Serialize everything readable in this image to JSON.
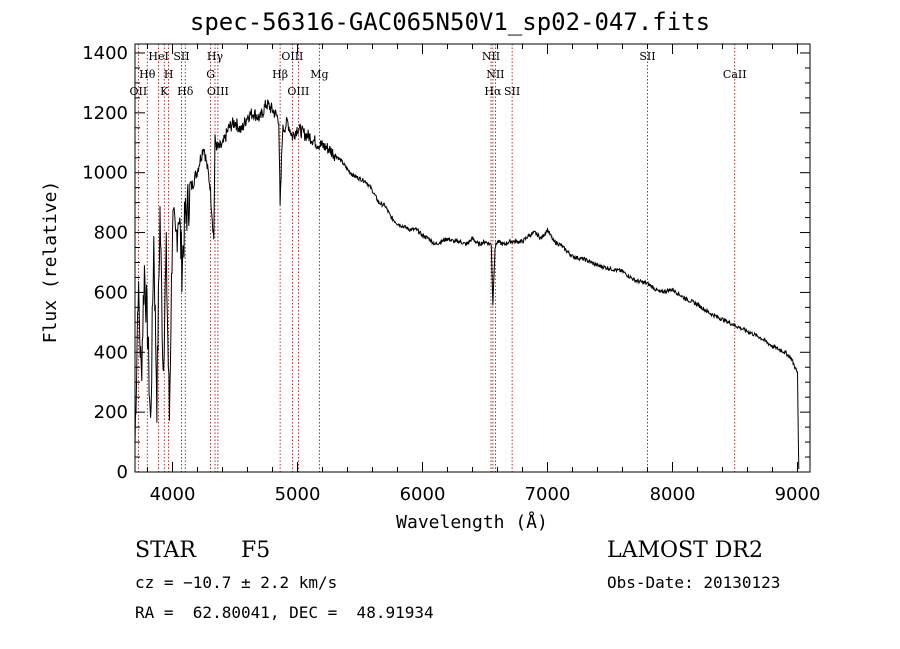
{
  "chart_data": {
    "type": "line",
    "title": "spec-56316-GAC065N50V1_sp02-047.fits",
    "xlabel": "Wavelength (Å)",
    "ylabel": "Flux (relative)",
    "xlim": [
      3700,
      9100
    ],
    "ylim": [
      0,
      1430
    ],
    "xticks": [
      4000,
      5000,
      6000,
      7000,
      8000,
      9000
    ],
    "yticks": [
      0,
      200,
      400,
      600,
      800,
      1000,
      1200,
      1400
    ],
    "grid": false,
    "legend": "none",
    "line_color": "#000000",
    "marker_color": "#8b0000",
    "series": [
      {
        "x": [
          3700,
          3725,
          3750,
          3775,
          3800,
          3825,
          3850,
          3875,
          3900,
          3925,
          3950,
          3975,
          4000,
          4025,
          4050,
          4075,
          4100,
          4150,
          4200,
          4250,
          4300,
          4330,
          4340,
          4360,
          4400,
          4450,
          4500,
          4550,
          4600,
          4650,
          4700,
          4750,
          4800,
          4850,
          4861,
          4880,
          4920,
          4960,
          5000,
          5050,
          5100,
          5150,
          5200,
          5250,
          5300,
          5350,
          5400,
          5450,
          5500,
          5550,
          5600,
          5650,
          5700,
          5750,
          5800,
          5850,
          5900,
          5950,
          6000,
          6050,
          6100,
          6150,
          6200,
          6250,
          6300,
          6350,
          6400,
          6450,
          6500,
          6550,
          6563,
          6580,
          6600,
          6650,
          6700,
          6750,
          6800,
          6850,
          6900,
          6950,
          7000,
          7050,
          7100,
          7150,
          7200,
          7300,
          7400,
          7500,
          7600,
          7700,
          7800,
          7900,
          8000,
          8100,
          8200,
          8300,
          8400,
          8500,
          8600,
          8700,
          8800,
          8900,
          8950,
          8980,
          9000,
          9010
        ],
        "y": [
          90,
          620,
          320,
          680,
          480,
          150,
          780,
          240,
          870,
          350,
          720,
          180,
          840,
          760,
          880,
          690,
          840,
          950,
          1010,
          1090,
          960,
          780,
          1110,
          1080,
          1090,
          1150,
          1170,
          1140,
          1190,
          1200,
          1180,
          1230,
          1210,
          1180,
          880,
          1140,
          1170,
          1120,
          1150,
          1130,
          1120,
          1100,
          1090,
          1080,
          1060,
          1040,
          1010,
          990,
          980,
          970,
          940,
          900,
          890,
          850,
          830,
          820,
          810,
          810,
          790,
          780,
          760,
          770,
          780,
          770,
          770,
          760,
          780,
          760,
          770,
          760,
          560,
          750,
          770,
          760,
          770,
          770,
          770,
          790,
          800,
          780,
          810,
          770,
          760,
          740,
          720,
          710,
          690,
          680,
          670,
          640,
          630,
          600,
          610,
          580,
          560,
          530,
          510,
          490,
          470,
          450,
          420,
          400,
          380,
          350,
          330,
          10
        ]
      }
    ],
    "lines": [
      {
        "name": "OII",
        "wavelength": 3727,
        "row": 3
      },
      {
        "name": "Hθ",
        "wavelength": 3798,
        "row": 2
      },
      {
        "name": "HeI",
        "wavelength": 3889,
        "row": 1
      },
      {
        "name": "K",
        "wavelength": 3934,
        "row": 3
      },
      {
        "name": "H",
        "wavelength": 3969,
        "row": 2
      },
      {
        "name": "SII",
        "wavelength": 4072,
        "row": 1
      },
      {
        "name": "Hδ",
        "wavelength": 4102,
        "row": 3
      },
      {
        "name": "Hγ",
        "wavelength": 4340,
        "row": 1
      },
      {
        "name": "G",
        "wavelength": 4305,
        "row": 2
      },
      {
        "name": "OIII",
        "wavelength": 4363,
        "row": 3
      },
      {
        "name": "Hβ",
        "wavelength": 4861,
        "row": 2
      },
      {
        "name": "OIII",
        "wavelength": 4959,
        "row": 1
      },
      {
        "name": "OIII",
        "wavelength": 5007,
        "row": 3
      },
      {
        "name": "Mg",
        "wavelength": 5175,
        "row": 2
      },
      {
        "name": "NII",
        "wavelength": 6548,
        "row": 1
      },
      {
        "name": "NII",
        "wavelength": 6583,
        "row": 2
      },
      {
        "name": "Hα",
        "wavelength": 6563,
        "row": 3
      },
      {
        "name": "SII",
        "wavelength": 6717,
        "row": 3
      },
      {
        "name": "SII",
        "wavelength": 7800,
        "row": 1
      },
      {
        "name": "CaII",
        "wavelength": 8498,
        "row": 2
      }
    ]
  },
  "info": {
    "class": "STAR",
    "subclass": "F5",
    "survey": "LAMOST DR2",
    "cz": "cz = −10.7 ± 2.2 km/s",
    "obs_date": "Obs-Date: 20130123",
    "coords": "RA =  62.80041, DEC =  48.91934"
  }
}
